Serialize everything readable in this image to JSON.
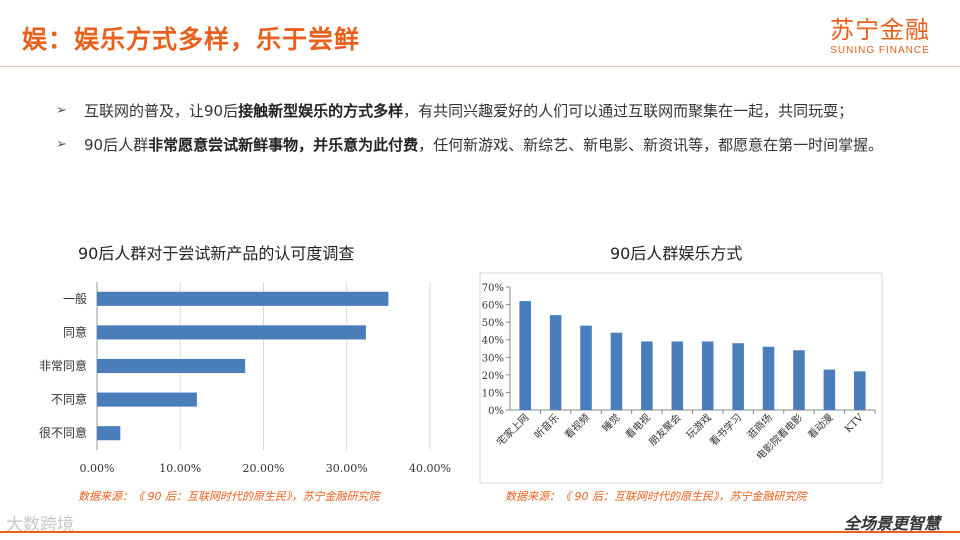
{
  "title": "娱：娱乐方式多样，乐于尝鲜",
  "logo": {
    "cn": "苏宁金融",
    "en": "SUNING FINANCE"
  },
  "bullets": [
    {
      "pre": "互联网的普及，让90后",
      "bold": "接触新型娱乐的方式多样",
      "post": "，有共同兴趣爱好的人们可以通过互联网而聚集在一起，共同玩耍；"
    },
    {
      "pre": "90后人群",
      "bold": "非常愿意尝试新鲜事物，并乐意为此付费",
      "post": "，任何新游戏、新综艺、新电影、新资讯等，都愿意在第一时间掌握。"
    }
  ],
  "chart_data": [
    {
      "type": "bar",
      "orientation": "horizontal",
      "title": "90后人群对于尝试新产品的认可度调查",
      "categories": [
        "一般",
        "同意",
        "非常同意",
        "不同意",
        "很不同意"
      ],
      "values": [
        35.0,
        32.3,
        17.8,
        12.0,
        2.8
      ],
      "xlim": [
        0,
        40
      ],
      "xticks": [
        "0.00%",
        "10.00%",
        "20.00%",
        "30.00%",
        "40.00%"
      ],
      "grid": true,
      "color": "#4a7ebb",
      "source": "数据来源：《 90 后：互联网时代的原生民》，苏宁金融研究院"
    },
    {
      "type": "bar",
      "orientation": "vertical",
      "title": "90后人群娱乐方式",
      "categories": [
        "宅家上网",
        "听音乐",
        "看视频",
        "睡觉",
        "看电视",
        "朋友聚会",
        "玩游戏",
        "看书学习",
        "逛商场",
        "电影院看电影",
        "看动漫",
        "KTV"
      ],
      "values": [
        62,
        54,
        48,
        44,
        39,
        39,
        39,
        38,
        36,
        34,
        23,
        22
      ],
      "ylim": [
        0,
        70
      ],
      "yticks": [
        "0%",
        "10%",
        "20%",
        "30%",
        "40%",
        "50%",
        "60%",
        "70%"
      ],
      "grid": false,
      "color": "#4a7ebb",
      "source": "数据来源：《 90 后：互联网时代的原生民》，苏宁金融研究院"
    }
  ],
  "footer": {
    "watermark": "大数跨境",
    "slogan": "全场景更智慧"
  },
  "colors": {
    "accent": "#e8601c",
    "bar": "#4a7ebb"
  }
}
